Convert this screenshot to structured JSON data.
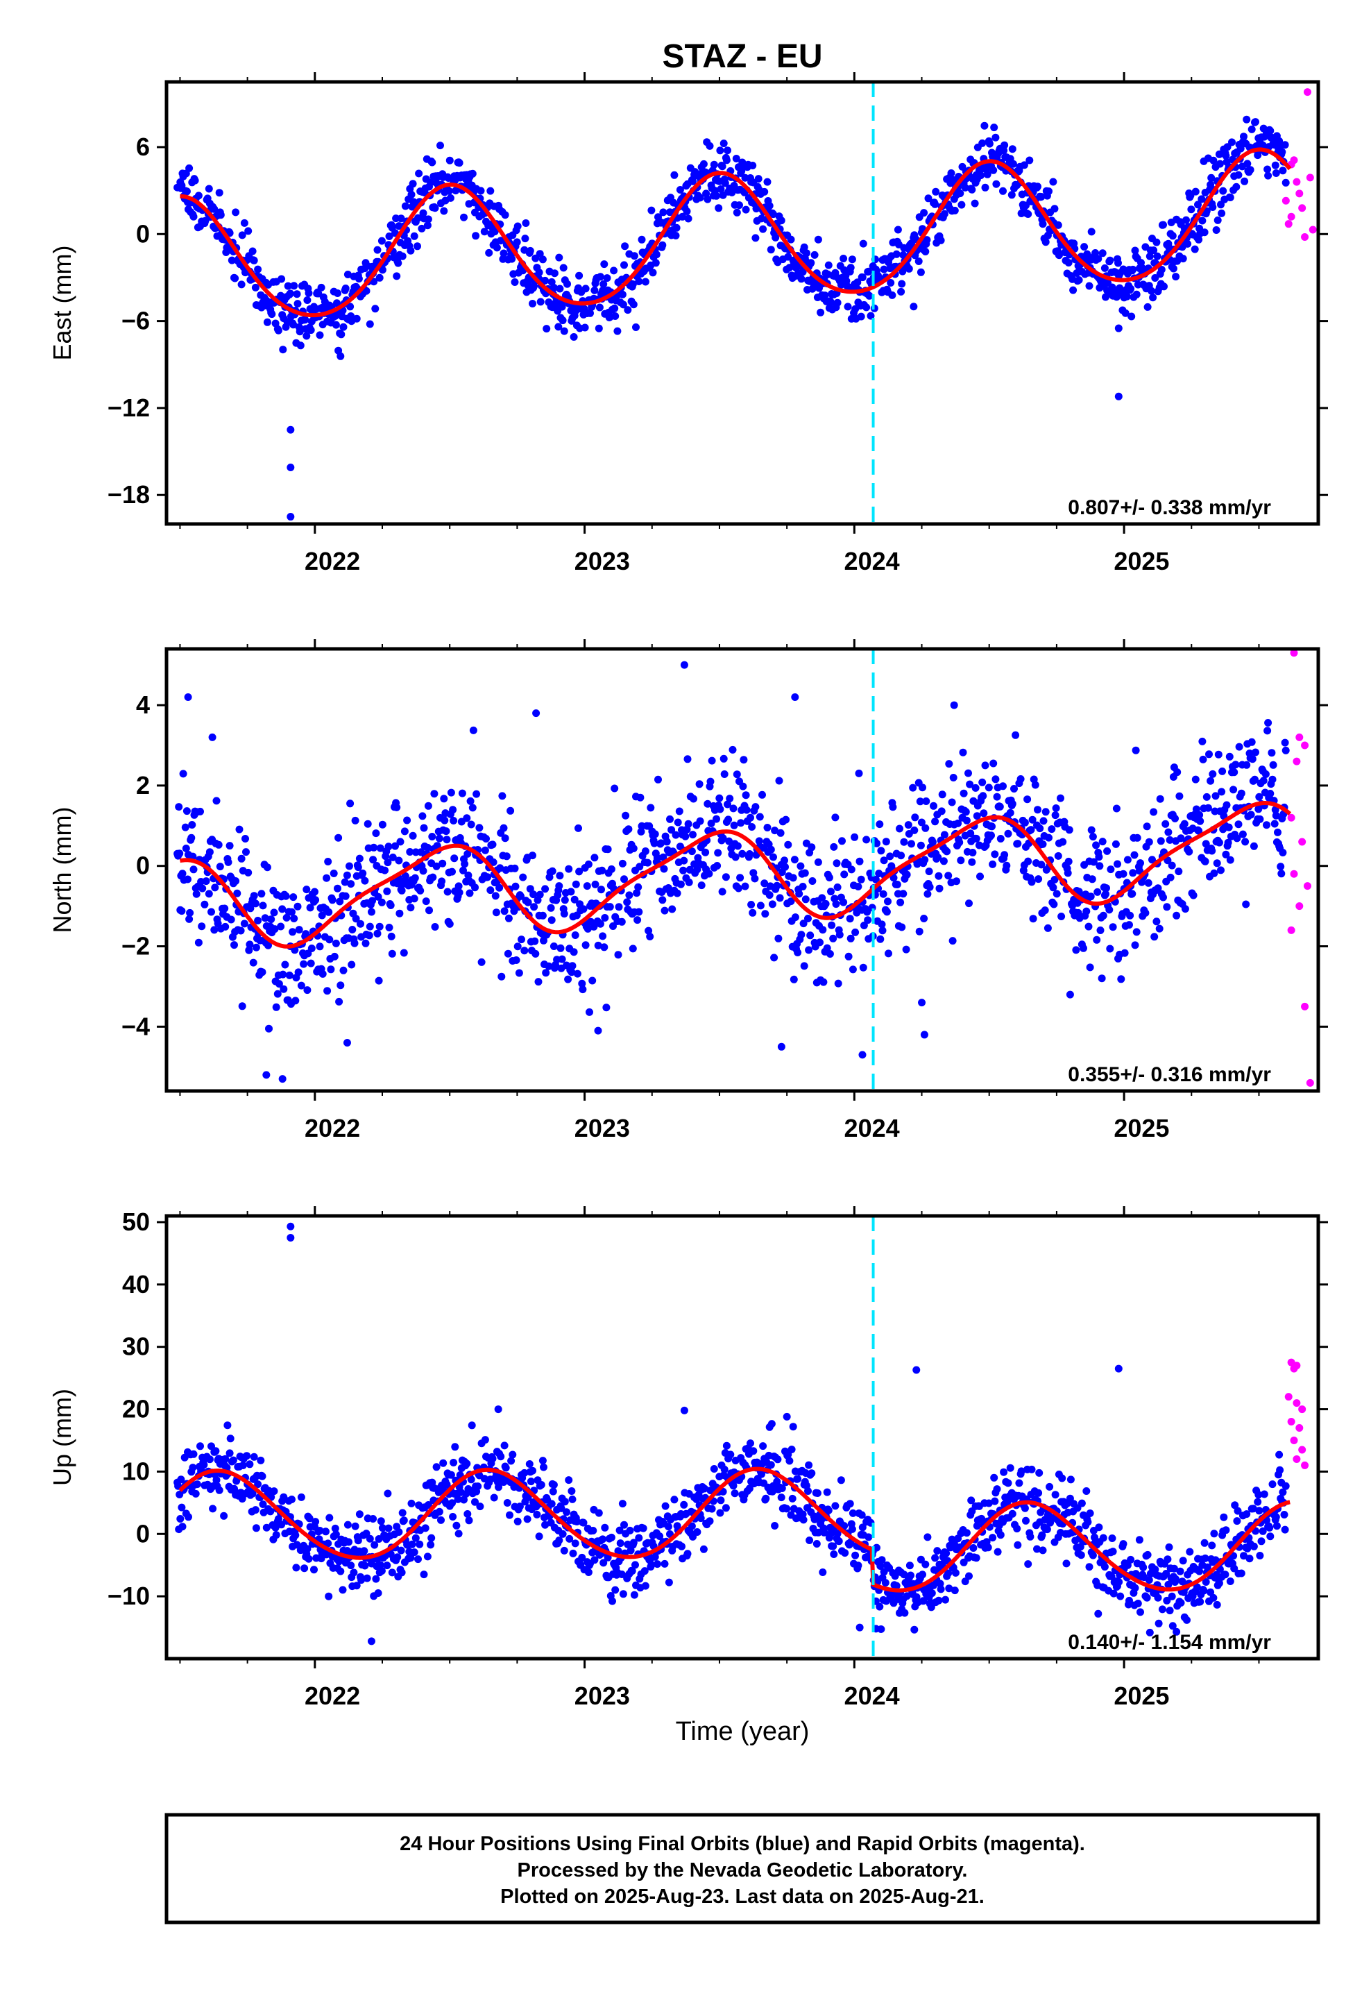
{
  "title": "STAZ - EU",
  "xlabel": "Time (year)",
  "footer": {
    "line1": "24 Hour Positions Using Final Orbits (blue) and Rapid Orbits (magenta).",
    "line2": "Processed by the Nevada Geodetic Laboratory.",
    "line3": "Plotted on 2025-Aug-23. Last data on 2025-Aug-21."
  },
  "colors": {
    "final": "#0000ff",
    "rapid": "#ff00ff",
    "model": "#ff0000",
    "event": "#00e5ff"
  },
  "chart_data": [
    {
      "type": "scatter",
      "component": "east",
      "ylabel": "East (mm)",
      "xlim": [
        2021.45,
        2025.72
      ],
      "ylim": [
        -20,
        10.5
      ],
      "yticks": [
        6,
        0,
        -6,
        -12,
        -18
      ],
      "xticks": [
        2022,
        2023,
        2024,
        2025
      ],
      "event_line_x": 2024.07,
      "rate": "0.807+/- 0.338 mm/yr",
      "model": {
        "rate": 0.807,
        "ref_year": 2023.6,
        "offset": -0.4,
        "annual_amp": 4.3,
        "annual_peak": 0.5,
        "semi_amp": 0.4,
        "semi_peak": 0.0,
        "step_at": 2024.07,
        "step": 0
      },
      "scatter_sd": 1.1,
      "outliers": [
        [
          2021.91,
          -13.5
        ],
        [
          2021.91,
          -16.1
        ],
        [
          2021.91,
          -19.5
        ],
        [
          2024.98,
          -11.2
        ],
        [
          2024.98,
          -6.5
        ],
        [
          2024.22,
          -5.0
        ]
      ],
      "rapid_points": [
        [
          2025.68,
          9.8
        ],
        [
          2025.62,
          4.8
        ],
        [
          2025.64,
          3.6
        ],
        [
          2025.6,
          2.3
        ],
        [
          2025.66,
          1.8
        ],
        [
          2025.61,
          0.7
        ],
        [
          2025.67,
          -0.2
        ],
        [
          2025.7,
          0.3
        ],
        [
          2025.63,
          5.1
        ],
        [
          2025.69,
          3.9
        ],
        [
          2025.65,
          2.8
        ],
        [
          2025.62,
          1.2
        ]
      ]
    },
    {
      "type": "scatter",
      "component": "north",
      "ylabel": "North (mm)",
      "xlim": [
        2021.45,
        2025.72
      ],
      "ylim": [
        -5.6,
        5.4
      ],
      "yticks": [
        4,
        2,
        0,
        -2,
        -4
      ],
      "xticks": [
        2022,
        2023,
        2024,
        2025
      ],
      "event_line_x": 2024.07,
      "rate": "0.355+/- 0.316 mm/yr",
      "model": {
        "rate": 0.355,
        "ref_year": 2023.6,
        "offset": -0.2,
        "annual_amp": 1.05,
        "annual_peak": 0.45,
        "semi_amp": 0.25,
        "semi_peak": 0.1,
        "step_at": 2024.07,
        "step": 0
      },
      "scatter_sd": 0.9,
      "outliers": [
        [
          2021.53,
          4.2
        ],
        [
          2021.62,
          3.2
        ],
        [
          2022.82,
          3.8
        ],
        [
          2023.37,
          5.0
        ],
        [
          2023.78,
          4.2
        ],
        [
          2024.37,
          4.0
        ],
        [
          2021.82,
          -5.2
        ],
        [
          2021.88,
          -5.3
        ],
        [
          2022.12,
          -4.4
        ],
        [
          2023.05,
          -4.1
        ],
        [
          2023.73,
          -4.5
        ],
        [
          2024.03,
          -4.7
        ],
        [
          2024.26,
          -4.2
        ],
        [
          2024.25,
          -3.4
        ]
      ],
      "rapid_points": [
        [
          2025.63,
          5.3
        ],
        [
          2025.65,
          3.2
        ],
        [
          2025.67,
          3.0
        ],
        [
          2025.64,
          2.6
        ],
        [
          2025.62,
          1.2
        ],
        [
          2025.66,
          0.6
        ],
        [
          2025.63,
          -0.2
        ],
        [
          2025.68,
          -0.5
        ],
        [
          2025.65,
          -1.0
        ],
        [
          2025.62,
          -1.6
        ],
        [
          2025.67,
          -3.5
        ],
        [
          2025.69,
          -5.4
        ]
      ]
    },
    {
      "type": "scatter",
      "component": "up",
      "ylabel": "Up (mm)",
      "xlim": [
        2021.45,
        2025.72
      ],
      "ylim": [
        -20,
        51
      ],
      "yticks": [
        50,
        40,
        30,
        20,
        10,
        0,
        -10
      ],
      "xticks": [
        2022,
        2023,
        2024,
        2025
      ],
      "event_line_x": 2024.07,
      "rate": "0.140+/- 1.154 mm/yr",
      "model": {
        "rate": 0.14,
        "ref_year": 2023.6,
        "offset": 3.0,
        "annual_amp": 7.0,
        "annual_peak": 0.65,
        "semi_amp": 0.5,
        "semi_peak": 0.1,
        "step_at": 2024.07,
        "step": -5.5
      },
      "scatter_sd": 3.0,
      "outliers": [
        [
          2021.91,
          49.3
        ],
        [
          2021.91,
          47.5
        ],
        [
          2024.23,
          26.3
        ],
        [
          2024.98,
          26.5
        ],
        [
          2023.37,
          19.8
        ],
        [
          2022.68,
          20.0
        ],
        [
          2023.75,
          18.8
        ],
        [
          2022.21,
          -17.2
        ],
        [
          2024.08,
          -15.2
        ],
        [
          2024.02,
          -15.0
        ]
      ],
      "rapid_points": [
        [
          2025.62,
          27.5
        ],
        [
          2025.64,
          27.0
        ],
        [
          2025.63,
          26.5
        ],
        [
          2025.61,
          22.0
        ],
        [
          2025.64,
          21.0
        ],
        [
          2025.66,
          20.0
        ],
        [
          2025.62,
          18.0
        ],
        [
          2025.65,
          17.0
        ],
        [
          2025.63,
          15.0
        ],
        [
          2025.66,
          13.5
        ],
        [
          2025.64,
          12.0
        ],
        [
          2025.67,
          11.0
        ]
      ]
    }
  ]
}
